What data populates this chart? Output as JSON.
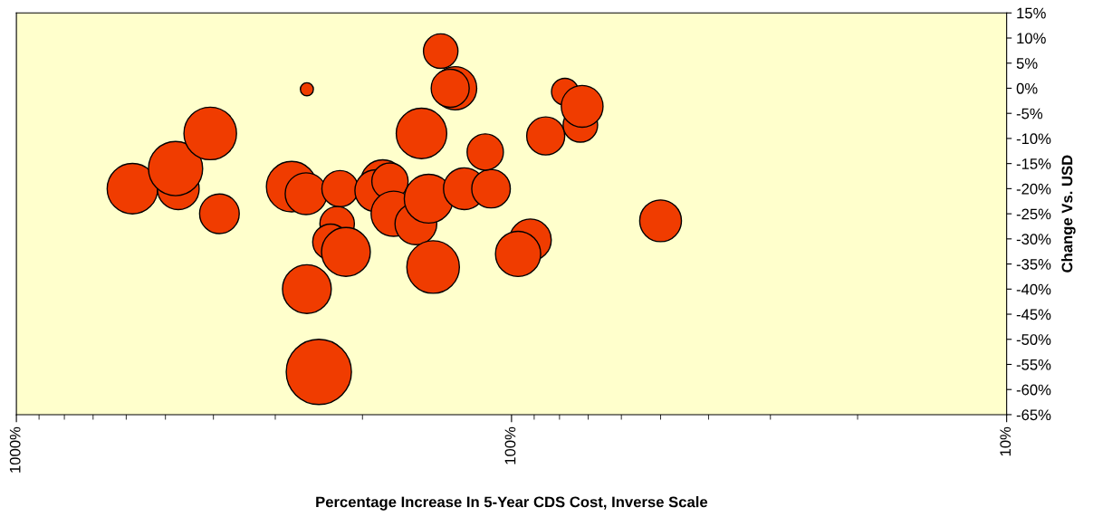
{
  "chart_data": {
    "type": "bubble",
    "xlabel": "Percentage Increase In 5-Year CDS Cost, Inverse Scale",
    "ylabel": "Change Vs. USD",
    "log": "x",
    "xlim": [
      1000,
      10
    ],
    "xticks": [
      {
        "value": 1000,
        "label": "1000%"
      },
      {
        "value": 100,
        "label": "100%"
      },
      {
        "value": 10,
        "label": "10%"
      }
    ],
    "ylim": [
      -65,
      15
    ],
    "yticks": [
      {
        "value": 15,
        "label": "15%"
      },
      {
        "value": 10,
        "label": "10%"
      },
      {
        "value": 5,
        "label": "5%"
      },
      {
        "value": 0,
        "label": "0%"
      },
      {
        "value": -5,
        "label": "-5%"
      },
      {
        "value": -10,
        "label": "-10%"
      },
      {
        "value": -15,
        "label": "-15%"
      },
      {
        "value": -20,
        "label": "-20%"
      },
      {
        "value": -25,
        "label": "-25%"
      },
      {
        "value": -30,
        "label": "-30%"
      },
      {
        "value": -35,
        "label": "-35%"
      },
      {
        "value": -40,
        "label": "-40%"
      },
      {
        "value": -45,
        "label": "-45%"
      },
      {
        "value": -50,
        "label": "-50%"
      },
      {
        "value": -55,
        "label": "-55%"
      },
      {
        "value": -60,
        "label": "-60%"
      },
      {
        "value": -65,
        "label": "-65%"
      }
    ],
    "grid": false,
    "legend": false,
    "series": [
      {
        "color": "#f03c00",
        "x": [
          583,
          471,
          477,
          406,
          389,
          259,
          278,
          260,
          222,
          225,
          232,
          216,
          259,
          245,
          182,
          188,
          176,
          173,
          156,
          147,
          152,
          139,
          130,
          133,
          144,
          124.5,
          110,
          113,
          91.6,
          97,
          85.3,
          78,
          72.6,
          72,
          50
        ],
        "values": [
          -20,
          -20,
          -16,
          -9,
          -25,
          -0.2,
          -19.6,
          -21,
          -20,
          -27,
          -30.6,
          -32.6,
          -40,
          -56.5,
          -18.6,
          -20.4,
          -18.5,
          -25,
          -27,
          -22,
          -9,
          7.4,
          0,
          0,
          -35.6,
          -20,
          -20,
          -12.7,
          -30.2,
          -33,
          -9.5,
          -0.7,
          -7.3,
          -3.6,
          -26.4
        ],
        "sizes": [
          0.6,
          0.41,
          0.69,
          0.65,
          0.37,
          0.04,
          0.6,
          0.41,
          0.31,
          0.28,
          0.3,
          0.56,
          0.56,
          1,
          0.45,
          0.41,
          0.31,
          0.48,
          0.41,
          0.56,
          0.6,
          0.28,
          0.44,
          0.34,
          0.65,
          0.41,
          0.35,
          0.31,
          0.41,
          0.48,
          0.34,
          0.17,
          0.28,
          0.41,
          0.41
        ]
      }
    ]
  }
}
